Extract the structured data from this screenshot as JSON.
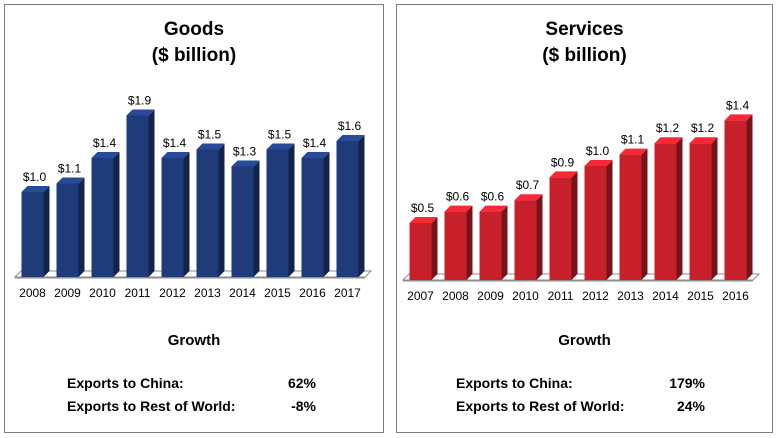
{
  "chart_data": [
    {
      "type": "bar",
      "title": "Goods",
      "subtitle": "($ billion)",
      "categories": [
        "2008",
        "2009",
        "2010",
        "2011",
        "2012",
        "2013",
        "2014",
        "2015",
        "2016",
        "2017"
      ],
      "values": [
        1.0,
        1.1,
        1.4,
        1.9,
        1.4,
        1.5,
        1.3,
        1.5,
        1.4,
        1.6
      ],
      "data_labels": [
        "$1.0",
        "$1.1",
        "$1.4",
        "$1.9",
        "$1.4",
        "$1.5",
        "$1.3",
        "$1.5",
        "$1.4",
        "$1.6"
      ],
      "ylim": [
        0,
        2.0
      ],
      "color": "#1f3b7a",
      "grid": false,
      "growth": {
        "title": "Growth",
        "rows": [
          {
            "label": "Exports to China:",
            "value": "62%"
          },
          {
            "label": "Exports to Rest of World:",
            "value": "-8%"
          }
        ]
      }
    },
    {
      "type": "bar",
      "title": "Services",
      "subtitle": "($ billion)",
      "categories": [
        "2007",
        "2008",
        "2009",
        "2010",
        "2011",
        "2012",
        "2013",
        "2014",
        "2015",
        "2016"
      ],
      "values": [
        0.5,
        0.6,
        0.6,
        0.7,
        0.9,
        1.0,
        1.1,
        1.2,
        1.2,
        1.4
      ],
      "data_labels": [
        "$0.5",
        "$0.6",
        "$0.6",
        "$0.7",
        "$0.9",
        "$1.0",
        "$1.1",
        "$1.2",
        "$1.2",
        "$1.4"
      ],
      "ylim": [
        0,
        1.6
      ],
      "color": "#c8202a",
      "grid": false,
      "growth": {
        "title": "Growth",
        "rows": [
          {
            "label": "Exports to China:",
            "value": "179%"
          },
          {
            "label": "Exports to Rest of World:",
            "value": "24%"
          }
        ]
      }
    }
  ]
}
